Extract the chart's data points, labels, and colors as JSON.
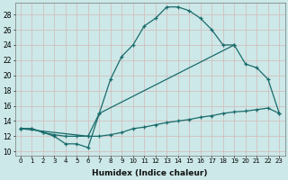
{
  "background_color": "#cce8e8",
  "grid_color": "#e8c8c8",
  "line_color": "#1a6b6b",
  "xlabel": "Humidex (Indice chaleur)",
  "xlim": [
    -0.5,
    23.5
  ],
  "ylim": [
    9.5,
    29.5
  ],
  "yticks": [
    10,
    12,
    14,
    16,
    18,
    20,
    22,
    24,
    26,
    28
  ],
  "xticks": [
    0,
    1,
    2,
    3,
    4,
    5,
    6,
    7,
    8,
    9,
    10,
    11,
    12,
    13,
    14,
    15,
    16,
    17,
    18,
    19,
    20,
    21,
    22,
    23
  ],
  "series1_x": [
    0,
    1,
    2,
    3,
    4,
    5,
    6,
    7,
    8,
    9,
    10,
    11,
    12,
    13,
    14,
    15,
    16,
    17,
    18,
    19
  ],
  "series1_y": [
    13,
    13,
    12.5,
    12,
    11,
    11,
    10.5,
    15,
    19.5,
    22.5,
    24,
    26.5,
    27.5,
    29,
    29,
    28.5,
    27.5,
    26,
    24,
    24
  ],
  "series2_x": [
    0,
    6,
    7,
    19,
    20,
    21,
    22,
    23
  ],
  "series2_y": [
    13,
    12,
    15,
    24,
    21.5,
    21,
    19.5,
    15
  ],
  "series3_x": [
    0,
    1,
    2,
    3,
    4,
    5,
    6,
    7,
    8,
    9,
    10,
    11,
    12,
    13,
    14,
    15,
    16,
    17,
    18,
    19,
    20,
    21,
    22,
    23
  ],
  "series3_y": [
    13,
    13,
    12.5,
    12.2,
    12,
    12,
    12,
    12,
    12.2,
    12.5,
    13,
    13.2,
    13.5,
    13.8,
    14,
    14.2,
    14.5,
    14.7,
    15,
    15.2,
    15.3,
    15.5,
    15.7,
    15
  ]
}
